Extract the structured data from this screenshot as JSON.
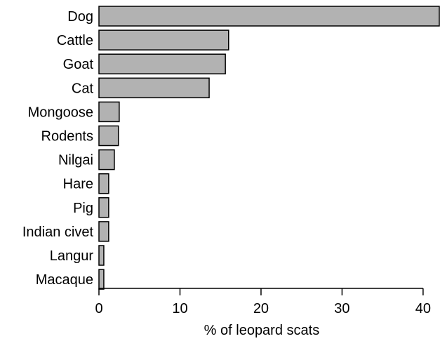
{
  "chart_data": {
    "type": "bar",
    "orientation": "horizontal",
    "categories": [
      "Dog",
      "Cattle",
      "Goat",
      "Cat",
      "Mongoose",
      "Rodents",
      "Nilgai",
      "Hare",
      "Pig",
      "Indian civet",
      "Langur",
      "Macaque"
    ],
    "values": [
      42,
      16,
      15.6,
      13.6,
      2.5,
      2.4,
      1.9,
      1.2,
      1.2,
      1.2,
      0.6,
      0.6
    ],
    "xlabel": "% of leopard scats",
    "ylabel": "",
    "xlim": [
      0,
      42
    ],
    "xticks": [
      "0",
      "10",
      "20",
      "30",
      "40"
    ],
    "grid": false,
    "bar_color": "#b2b2b2",
    "edge_color": "#000000"
  }
}
